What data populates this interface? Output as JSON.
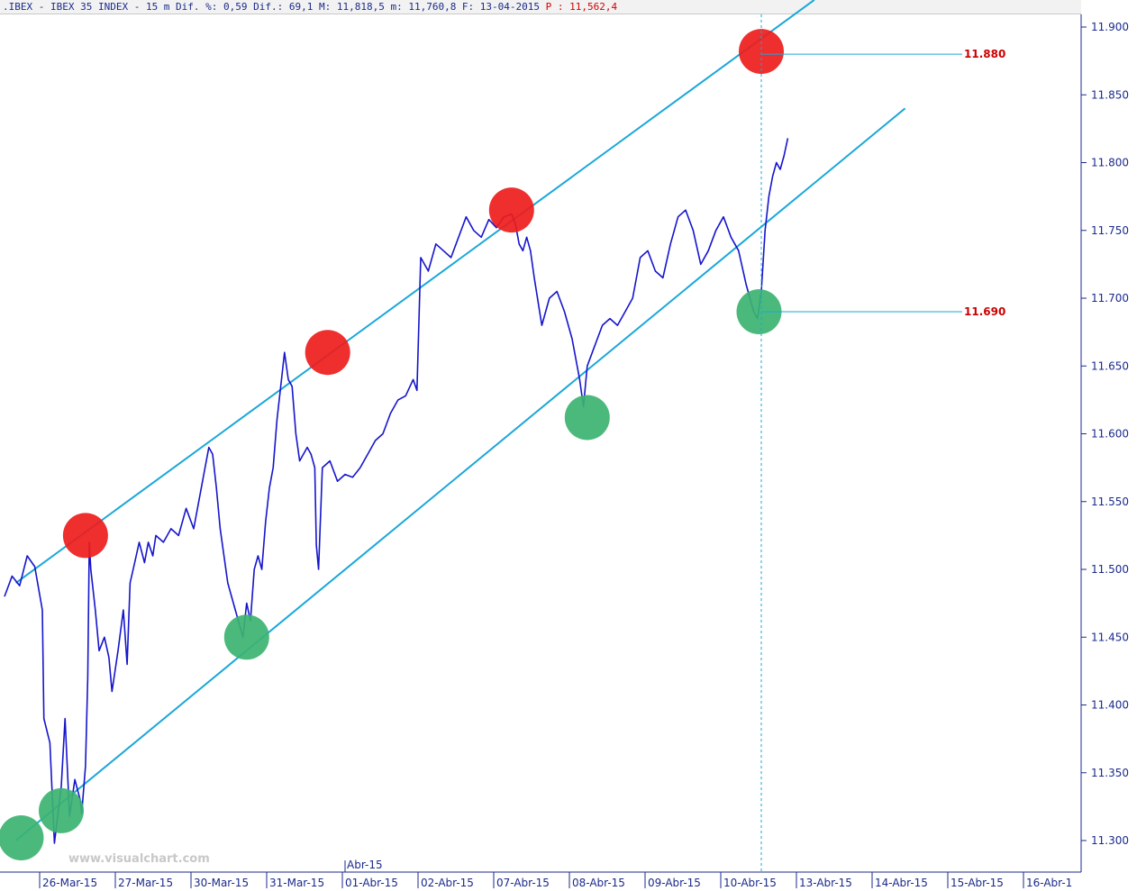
{
  "header": {
    "text": ".IBEX - IBEX 35 INDEX -  15 m Dif. %: 0,59 Dif.: 69,1 M: 11,818,5 m: 11,760,8 F: 13-04-2015",
    "price_text": "P : 11,562,4"
  },
  "watermark": "www.visualchart.com",
  "chart_data": {
    "type": "line",
    "title": "",
    "xlabel": "",
    "ylabel": "",
    "ylim": [
      11270,
      11915
    ],
    "y_ticks": [
      "11.900",
      "11.850",
      "11.800",
      "11.750",
      "11.700",
      "11.650",
      "11.600",
      "11.550",
      "11.500",
      "11.450",
      "11.400",
      "11.350",
      "11.300"
    ],
    "y_tick_values": [
      11900,
      11850,
      11800,
      11750,
      11700,
      11650,
      11600,
      11550,
      11500,
      11450,
      11400,
      11350,
      11300
    ],
    "x_ticks": [
      "26-Mar-15",
      "27-Mar-15",
      "30-Mar-15",
      "31-Mar-15",
      "01-Abr-15",
      "02-Abr-15",
      "07-Abr-15",
      "08-Abr-15",
      "09-Abr-15",
      "10-Abr-15",
      "13-Abr-15",
      "14-Abr-15",
      "15-Abr-15",
      "16-Abr-1"
    ],
    "month_marker": "Abr-15",
    "grid": false,
    "series": [
      {
        "values": [
          [
            0.0,
            11480
          ],
          [
            0.1,
            11495
          ],
          [
            0.2,
            11488
          ],
          [
            0.3,
            11510
          ],
          [
            0.4,
            11502
          ],
          [
            0.5,
            11470
          ],
          [
            0.52,
            11390
          ],
          [
            0.6,
            11372
          ],
          [
            0.66,
            11298
          ],
          [
            0.75,
            11340
          ],
          [
            0.8,
            11390
          ],
          [
            0.86,
            11318
          ],
          [
            0.93,
            11345
          ],
          [
            1.0,
            11330
          ],
          [
            1.02,
            11320
          ],
          [
            1.07,
            11355
          ],
          [
            1.1,
            11420
          ],
          [
            1.12,
            11520
          ],
          [
            1.14,
            11500
          ],
          [
            1.2,
            11470
          ],
          [
            1.25,
            11440
          ],
          [
            1.32,
            11450
          ],
          [
            1.38,
            11435
          ],
          [
            1.42,
            11410
          ],
          [
            1.5,
            11440
          ],
          [
            1.57,
            11470
          ],
          [
            1.62,
            11430
          ],
          [
            1.66,
            11490
          ],
          [
            1.72,
            11505
          ],
          [
            1.78,
            11520
          ],
          [
            1.85,
            11505
          ],
          [
            1.9,
            11520
          ],
          [
            1.96,
            11510
          ],
          [
            2.0,
            11525
          ],
          [
            2.1,
            11520
          ],
          [
            2.2,
            11530
          ],
          [
            2.3,
            11525
          ],
          [
            2.4,
            11545
          ],
          [
            2.5,
            11530
          ],
          [
            2.6,
            11560
          ],
          [
            2.65,
            11575
          ],
          [
            2.7,
            11590
          ],
          [
            2.75,
            11585
          ],
          [
            2.8,
            11560
          ],
          [
            2.85,
            11530
          ],
          [
            2.9,
            11510
          ],
          [
            2.95,
            11490
          ],
          [
            3.0,
            11480
          ],
          [
            3.05,
            11470
          ],
          [
            3.1,
            11460
          ],
          [
            3.15,
            11450
          ],
          [
            3.2,
            11475
          ],
          [
            3.25,
            11462
          ],
          [
            3.3,
            11500
          ],
          [
            3.35,
            11510
          ],
          [
            3.4,
            11500
          ],
          [
            3.45,
            11535
          ],
          [
            3.5,
            11560
          ],
          [
            3.55,
            11575
          ],
          [
            3.6,
            11610
          ],
          [
            3.65,
            11635
          ],
          [
            3.7,
            11660
          ],
          [
            3.75,
            11640
          ],
          [
            3.8,
            11635
          ],
          [
            3.85,
            11600
          ],
          [
            3.9,
            11580
          ],
          [
            4.0,
            11590
          ],
          [
            4.05,
            11585
          ],
          [
            4.1,
            11575
          ],
          [
            4.12,
            11518
          ],
          [
            4.15,
            11500
          ],
          [
            4.2,
            11575
          ],
          [
            4.3,
            11580
          ],
          [
            4.4,
            11565
          ],
          [
            4.5,
            11570
          ],
          [
            4.6,
            11568
          ],
          [
            4.7,
            11575
          ],
          [
            4.8,
            11585
          ],
          [
            4.9,
            11595
          ],
          [
            5.0,
            11600
          ],
          [
            5.1,
            11615
          ],
          [
            5.2,
            11625
          ],
          [
            5.3,
            11628
          ],
          [
            5.4,
            11640
          ],
          [
            5.45,
            11632
          ],
          [
            5.5,
            11730
          ],
          [
            5.6,
            11720
          ],
          [
            5.7,
            11740
          ],
          [
            5.8,
            11735
          ],
          [
            5.9,
            11730
          ],
          [
            6.0,
            11745
          ],
          [
            6.1,
            11760
          ],
          [
            6.2,
            11750
          ],
          [
            6.3,
            11745
          ],
          [
            6.4,
            11758
          ],
          [
            6.5,
            11752
          ],
          [
            6.6,
            11760
          ],
          [
            6.7,
            11762
          ],
          [
            6.75,
            11755
          ],
          [
            6.8,
            11740
          ],
          [
            6.85,
            11735
          ],
          [
            6.9,
            11745
          ],
          [
            6.95,
            11735
          ],
          [
            7.0,
            11715
          ],
          [
            7.1,
            11680
          ],
          [
            7.2,
            11700
          ],
          [
            7.3,
            11705
          ],
          [
            7.4,
            11690
          ],
          [
            7.5,
            11670
          ],
          [
            7.6,
            11640
          ],
          [
            7.65,
            11620
          ],
          [
            7.7,
            11650
          ],
          [
            7.8,
            11665
          ],
          [
            7.9,
            11680
          ],
          [
            8.0,
            11685
          ],
          [
            8.1,
            11680
          ],
          [
            8.2,
            11690
          ],
          [
            8.3,
            11700
          ],
          [
            8.4,
            11730
          ],
          [
            8.5,
            11735
          ],
          [
            8.6,
            11720
          ],
          [
            8.7,
            11715
          ],
          [
            8.8,
            11740
          ],
          [
            8.9,
            11760
          ],
          [
            9.0,
            11765
          ],
          [
            9.1,
            11750
          ],
          [
            9.2,
            11725
          ],
          [
            9.3,
            11735
          ],
          [
            9.4,
            11750
          ],
          [
            9.5,
            11760
          ],
          [
            9.6,
            11745
          ],
          [
            9.7,
            11735
          ],
          [
            9.8,
            11710
          ],
          [
            9.85,
            11700
          ],
          [
            9.9,
            11690
          ],
          [
            9.95,
            11685
          ],
          [
            10.0,
            11705
          ],
          [
            10.05,
            11750
          ],
          [
            10.1,
            11775
          ],
          [
            10.15,
            11790
          ],
          [
            10.2,
            11800
          ],
          [
            10.25,
            11795
          ],
          [
            10.3,
            11805
          ],
          [
            10.35,
            11818
          ]
        ]
      }
    ],
    "channel": {
      "upper": [
        [
          0.15,
          11490
        ],
        [
          10.7,
          11920
        ]
      ],
      "lower": [
        [
          0.15,
          11300
        ],
        [
          11.9,
          11840
        ]
      ]
    },
    "markers": [
      {
        "type": "resistance",
        "color": "#ee1c1c",
        "x": 1.07,
        "y": 11525
      },
      {
        "type": "resistance",
        "color": "#ee1c1c",
        "x": 4.27,
        "y": 11660
      },
      {
        "type": "resistance",
        "color": "#ee1c1c",
        "x": 6.7,
        "y": 11765
      },
      {
        "type": "resistance",
        "color": "#ee1c1c",
        "x": 10.0,
        "y": 11882
      },
      {
        "type": "support",
        "color": "#3cb371",
        "x": 0.22,
        "y": 11302
      },
      {
        "type": "support",
        "color": "#3cb371",
        "x": 0.75,
        "y": 11322
      },
      {
        "type": "support",
        "color": "#3cb371",
        "x": 3.2,
        "y": 11450
      },
      {
        "type": "support",
        "color": "#3cb371",
        "x": 7.7,
        "y": 11612
      },
      {
        "type": "support",
        "color": "#3cb371",
        "x": 9.97,
        "y": 11690
      }
    ],
    "levels": [
      {
        "label": "11.880",
        "value": 11880
      },
      {
        "label": "11.690",
        "value": 11690
      }
    ],
    "cursor_x": 10.0,
    "colors": {
      "price": "#1515cc",
      "channel": "#1aa7d9",
      "axis": "#1a2a8c",
      "level_text": "#cc0000"
    }
  }
}
